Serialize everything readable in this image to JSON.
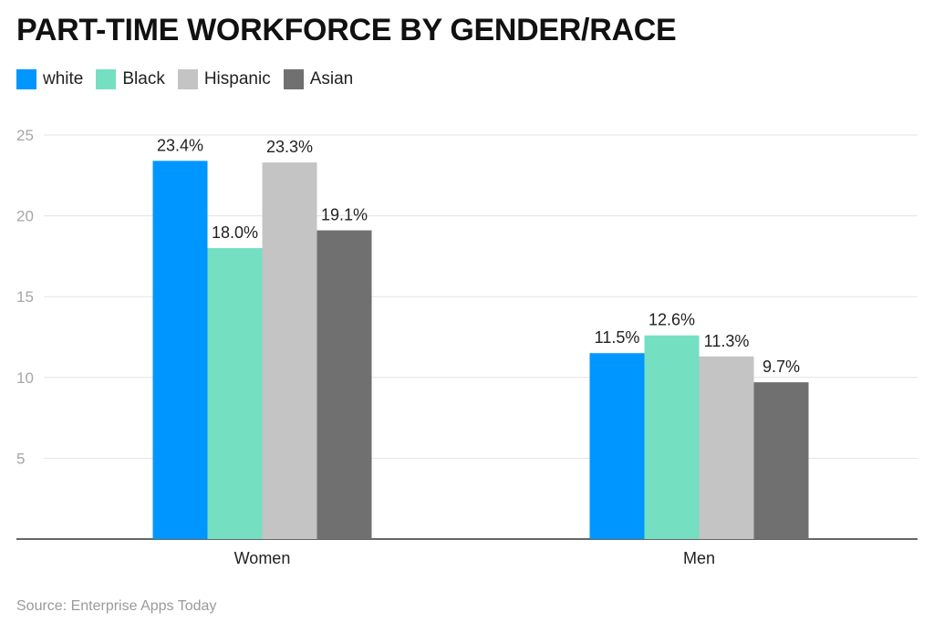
{
  "chart_data": {
    "type": "bar",
    "title": "PART-TIME WORKFORCE BY GENDER/RACE",
    "categories": [
      "Women",
      "Men"
    ],
    "series": [
      {
        "name": "white",
        "color": "#0096ff",
        "values": [
          23.4,
          11.5
        ]
      },
      {
        "name": "Black",
        "color": "#74e0c1",
        "values": [
          18.0,
          12.6
        ]
      },
      {
        "name": "Hispanic",
        "color": "#c4c4c4",
        "values": [
          23.3,
          11.3
        ]
      },
      {
        "name": "Asian",
        "color": "#707070",
        "values": [
          19.1,
          9.7
        ]
      }
    ],
    "value_labels": [
      [
        "23.4%",
        "11.5%"
      ],
      [
        "18.0%",
        "12.6%"
      ],
      [
        "23.3%",
        "11.3%"
      ],
      [
        "19.1%",
        "9.7%"
      ]
    ],
    "yticks": [
      5,
      10,
      15,
      20,
      25
    ],
    "ylim": [
      0,
      25
    ],
    "xlabel": "",
    "ylabel": "",
    "grid": true,
    "legend": "top-left"
  },
  "source": "Source: Enterprise Apps Today"
}
